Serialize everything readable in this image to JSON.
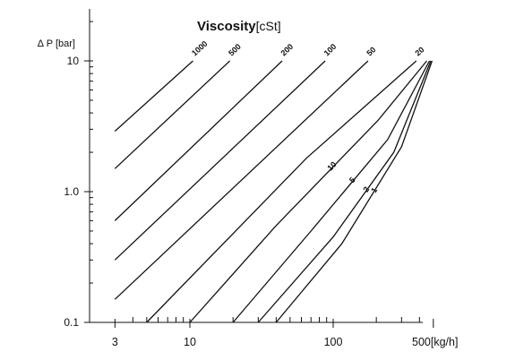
{
  "chart_data": {
    "type": "line",
    "title": "Viscosity",
    "title_unit": "[cSt]",
    "ylabel": "∆ P [bar]",
    "xlabel": "",
    "x_unit_label": "500[kg/h]",
    "x_scale": "log",
    "y_scale": "log",
    "xlim": [
      2.2,
      500
    ],
    "ylim": [
      0.1,
      10
    ],
    "x_tick_labels": [
      "3",
      "10",
      "100"
    ],
    "y_tick_labels": [
      "0.1",
      "1.0",
      "10"
    ],
    "series": [
      {
        "name": "1000",
        "points": [
          [
            3,
            2.9
          ],
          [
            10.5,
            10
          ]
        ]
      },
      {
        "name": "500",
        "points": [
          [
            3,
            1.5
          ],
          [
            19,
            10
          ]
        ]
      },
      {
        "name": "200",
        "points": [
          [
            3,
            0.6
          ],
          [
            44,
            10
          ]
        ]
      },
      {
        "name": "100",
        "points": [
          [
            3,
            0.3
          ],
          [
            88,
            10
          ]
        ]
      },
      {
        "name": "50",
        "points": [
          [
            3,
            0.15
          ],
          [
            175,
            10
          ]
        ]
      },
      {
        "name": "20",
        "points": [
          [
            5,
            0.1
          ],
          [
            65,
            1.8
          ],
          [
            380,
            10
          ]
        ]
      },
      {
        "name": "10",
        "points": [
          [
            10,
            0.1
          ],
          [
            40,
            0.55
          ],
          [
            205,
            3.5
          ],
          [
            450,
            10
          ]
        ]
      },
      {
        "name": "5",
        "points": [
          [
            20,
            0.1
          ],
          [
            70,
            0.5
          ],
          [
            240,
            2.5
          ],
          [
            470,
            10
          ]
        ]
      },
      {
        "name": "2",
        "points": [
          [
            30,
            0.1
          ],
          [
            100,
            0.45
          ],
          [
            265,
            2.0
          ],
          [
            480,
            10
          ]
        ]
      },
      {
        "name": "1",
        "points": [
          [
            40,
            0.1
          ],
          [
            115,
            0.4
          ],
          [
            300,
            2.2
          ],
          [
            490,
            10
          ]
        ]
      }
    ]
  }
}
